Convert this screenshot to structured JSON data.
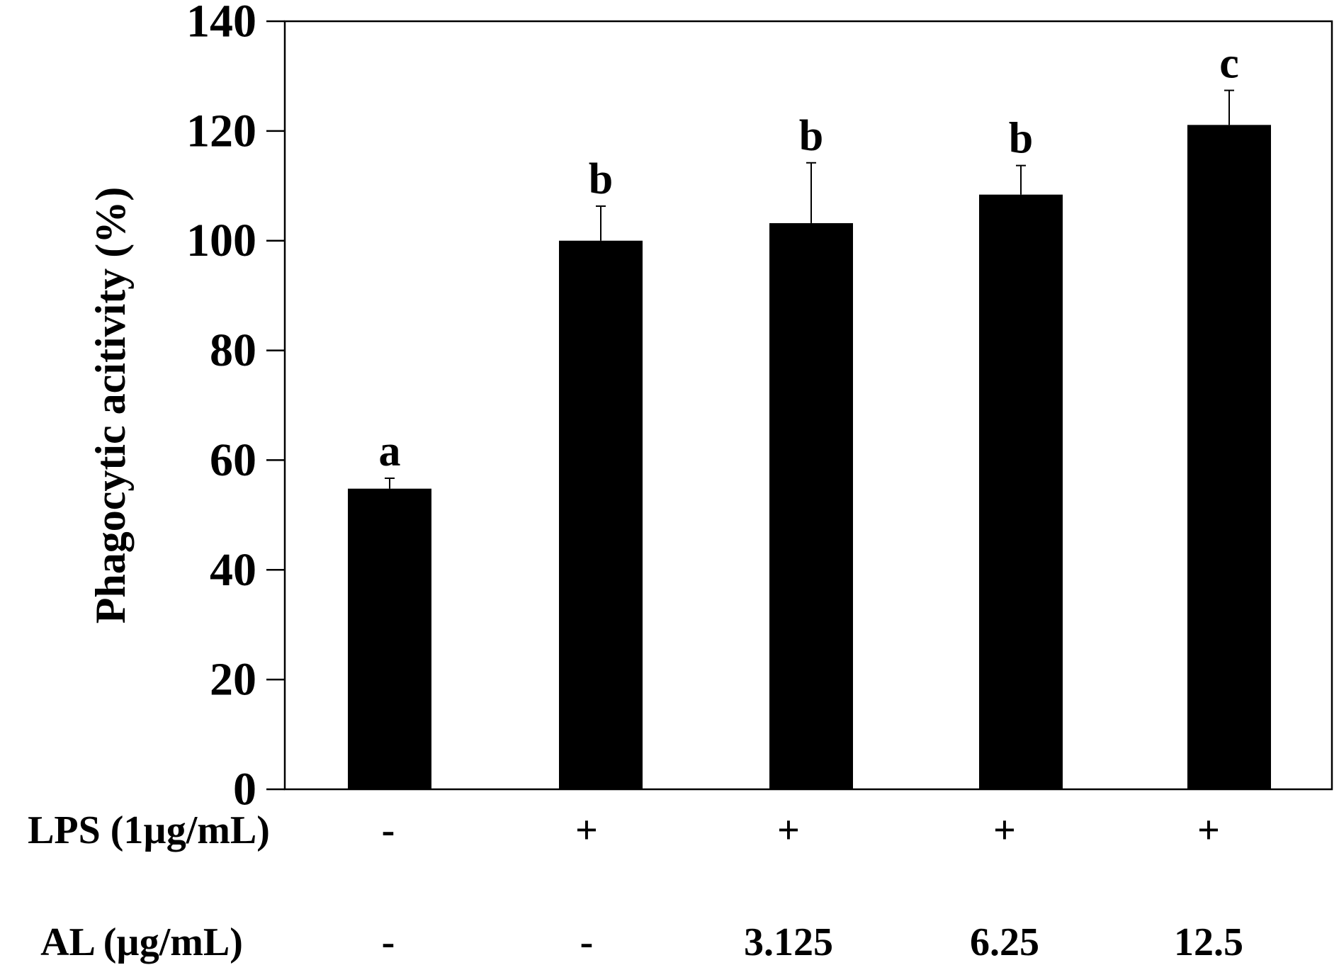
{
  "chart_data": {
    "type": "bar",
    "title": "",
    "xlabel": "",
    "ylabel": "Phagocytic acitivity (%)",
    "ylim": [
      0,
      140
    ],
    "yticks": [
      0,
      20,
      40,
      60,
      80,
      100,
      120,
      140
    ],
    "grid": false,
    "legend": null,
    "categories": [
      "LPS -, AL -",
      "LPS +, AL -",
      "LPS +, AL 3.125",
      "LPS +, AL 6.25",
      "LPS +, AL 12.5"
    ],
    "values": [
      54.8,
      100.0,
      103.2,
      108.4,
      121.1
    ],
    "error_upper": [
      1.9,
      6.3,
      11.0,
      5.3,
      6.3
    ],
    "significance_letters": [
      "a",
      "b",
      "b",
      "b",
      "c"
    ],
    "bar_color": "#000000",
    "treatment_rows": [
      {
        "label": "LPS (1µg/mL)",
        "values": [
          "-",
          "+",
          "+",
          "+",
          "+"
        ]
      },
      {
        "label": "AL (µg/mL)",
        "values": [
          "-",
          "-",
          "3.125",
          "6.25",
          "12.5"
        ]
      }
    ]
  }
}
